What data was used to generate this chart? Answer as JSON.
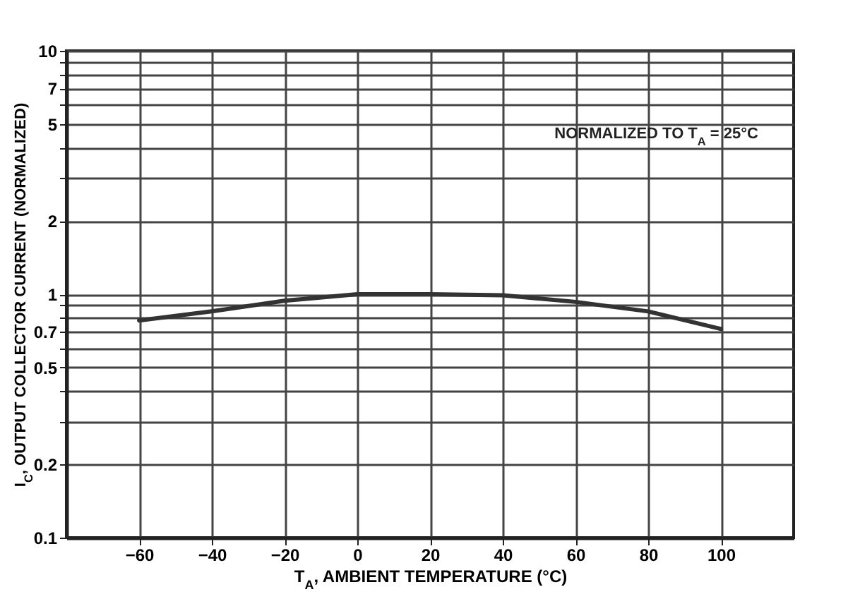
{
  "chart_data": {
    "type": "line",
    "xlabel": "T$_{A}$, AMBIENT TEMPERATURE (°C)",
    "ylabel": "I$_{C}$, OUTPUT COLLECTOR CURRENT (NORMALIZED)",
    "x": [
      -60,
      -40,
      -20,
      0,
      20,
      40,
      60,
      80,
      100
    ],
    "series": [
      {
        "color": "#333333",
        "values": [
          0.78,
          0.85,
          0.94,
          1.0,
          1.0,
          0.99,
          0.93,
          0.85,
          0.72
        ]
      }
    ],
    "log": "y",
    "xlim": [
      -80,
      120
    ],
    "xticks": [
      -60,
      -40,
      -20,
      0,
      20,
      40,
      60,
      80,
      100
    ],
    "ylim": [
      0.1,
      10
    ],
    "yticks": [
      0.1,
      0.2,
      {
        "value": 0.3,
        "label": null
      },
      {
        "value": 0.4,
        "label": null
      },
      0.5,
      {
        "value": 0.6,
        "label": null
      },
      0.7,
      {
        "value": 0.8,
        "label": null
      },
      {
        "value": 0.9,
        "label": null
      },
      1,
      2,
      {
        "value": 3,
        "label": null
      },
      {
        "value": 4,
        "label": null
      },
      5,
      {
        "value": 6,
        "label": null
      },
      7,
      {
        "value": 8,
        "label": null
      },
      {
        "value": 9,
        "label": null
      },
      10
    ],
    "grid": true,
    "marker": "none",
    "line_style": "solid",
    "annotations": [
      "NORMALIZED TO T$_{A}$ = 25°C"
    ]
  }
}
